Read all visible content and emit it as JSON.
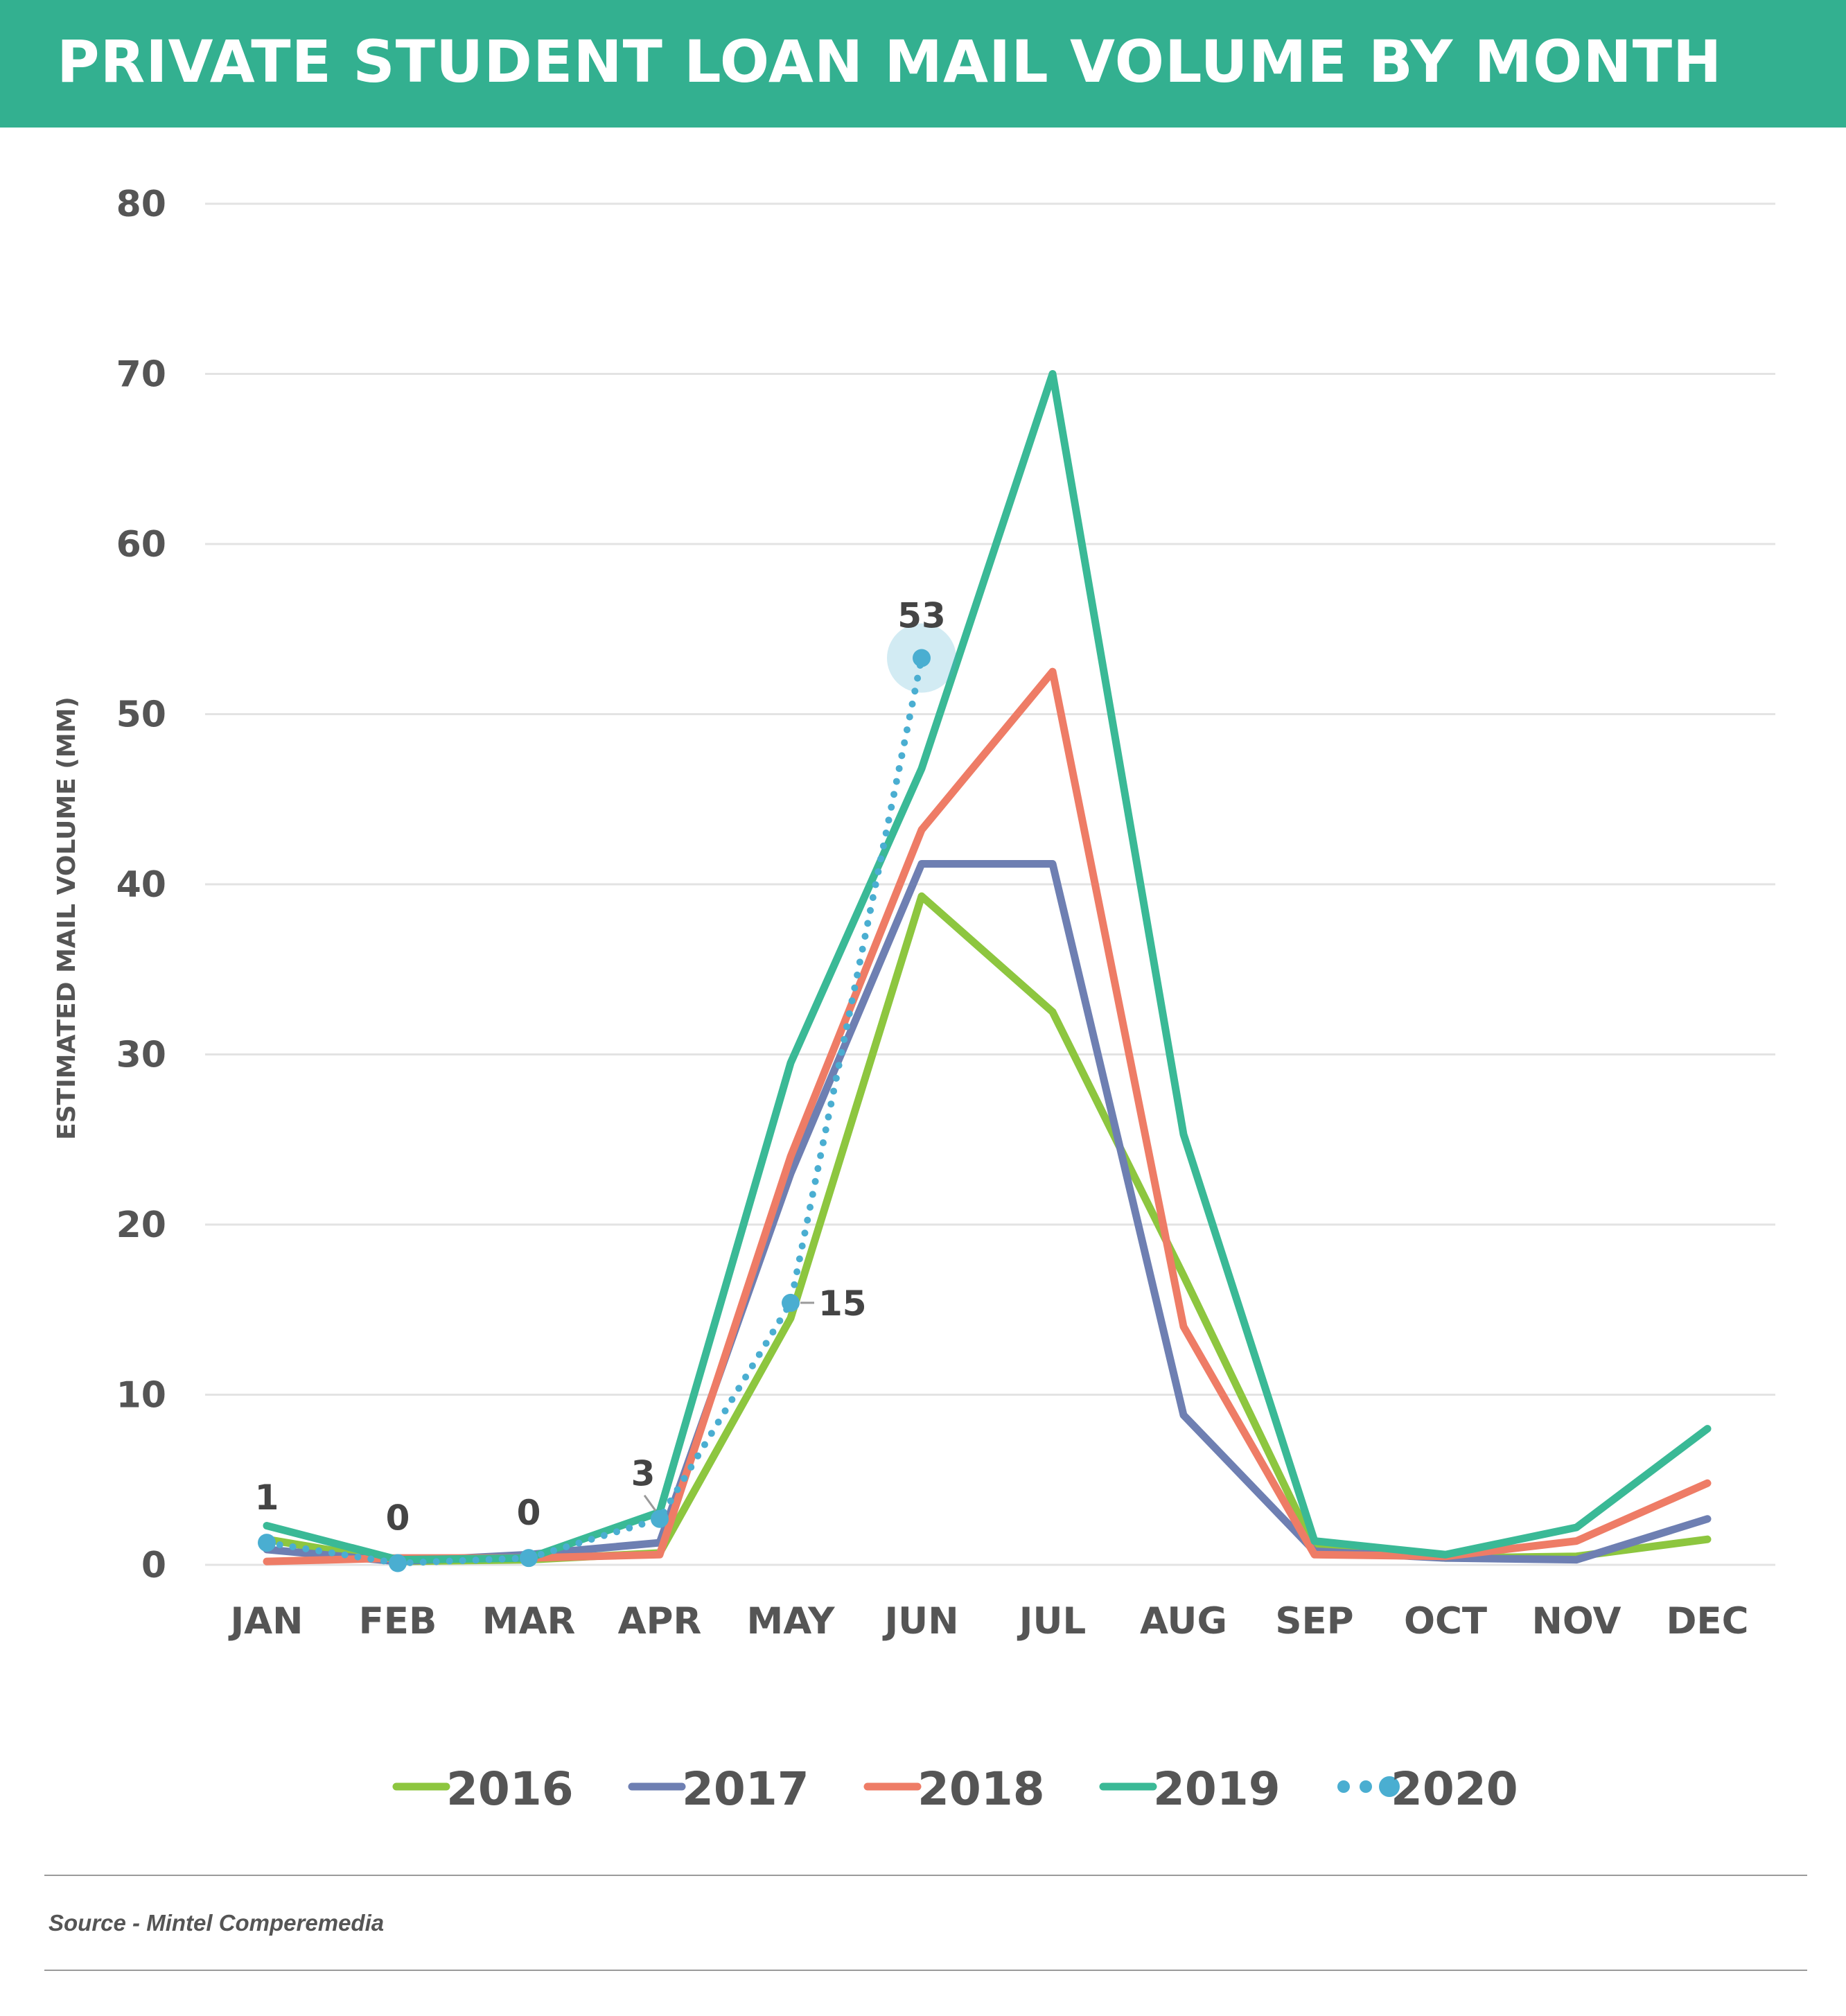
{
  "header": {
    "title": "PRIVATE STUDENT LOAN MAIL VOLUME BY MONTH"
  },
  "footer": {
    "source": "Source - Mintel Comperemedia"
  },
  "colors": {
    "banner": "#33b090",
    "s2016": "#8dc63f",
    "s2017": "#6e7fb2",
    "s2018": "#ee7c66",
    "s2019": "#3ab996",
    "s2020": "#4aaed1"
  },
  "chart_data": {
    "type": "line",
    "title": "PRIVATE STUDENT LOAN MAIL VOLUME BY MONTH",
    "ylabel": "ESTIMATED MAIL VOLUME (MM)",
    "xlabel": "",
    "ylim": [
      0,
      80
    ],
    "yticks": [
      0,
      10,
      20,
      30,
      40,
      50,
      60,
      70,
      80
    ],
    "grid": true,
    "legend": "bottom",
    "categories": [
      "JAN",
      "FEB",
      "MAR",
      "APR",
      "MAY",
      "JUN",
      "JUL",
      "AUG",
      "SEP",
      "OCT",
      "NOV",
      "DEC"
    ],
    "series": [
      {
        "name": "2016",
        "color": "#8dc63f",
        "style": "solid",
        "values": [
          1.5,
          0.2,
          0.3,
          0.7,
          14.5,
          39.3,
          32.5,
          17.0,
          1.0,
          0.4,
          0.5,
          1.5
        ]
      },
      {
        "name": "2017",
        "color": "#6e7fb2",
        "style": "solid",
        "values": [
          0.9,
          0.2,
          0.6,
          1.3,
          23.0,
          41.2,
          41.2,
          8.8,
          0.8,
          0.4,
          0.3,
          2.7
        ]
      },
      {
        "name": "2018",
        "color": "#ee7c66",
        "style": "solid",
        "values": [
          0.2,
          0.4,
          0.4,
          0.6,
          24.0,
          43.2,
          52.5,
          14.0,
          0.6,
          0.5,
          1.4,
          4.8
        ]
      },
      {
        "name": "2019",
        "color": "#3ab996",
        "style": "solid",
        "values": [
          2.3,
          0.3,
          0.4,
          3.1,
          29.5,
          46.8,
          70.0,
          25.3,
          1.4,
          0.6,
          2.2,
          8.0
        ]
      },
      {
        "name": "2020",
        "color": "#4aaed1",
        "style": "dotted",
        "values": [
          1.3,
          0.1,
          0.4,
          2.7,
          15.4,
          53.3,
          null,
          null,
          null,
          null,
          null,
          null
        ]
      }
    ],
    "data_labels": [
      {
        "series": "2020",
        "category": "JAN",
        "text": "1"
      },
      {
        "series": "2020",
        "category": "FEB",
        "text": "0"
      },
      {
        "series": "2020",
        "category": "MAR",
        "text": "0"
      },
      {
        "series": "2020",
        "category": "APR",
        "text": "3"
      },
      {
        "series": "2020",
        "category": "MAY",
        "text": "15"
      },
      {
        "series": "2020",
        "category": "JUN",
        "text": "53"
      }
    ]
  }
}
